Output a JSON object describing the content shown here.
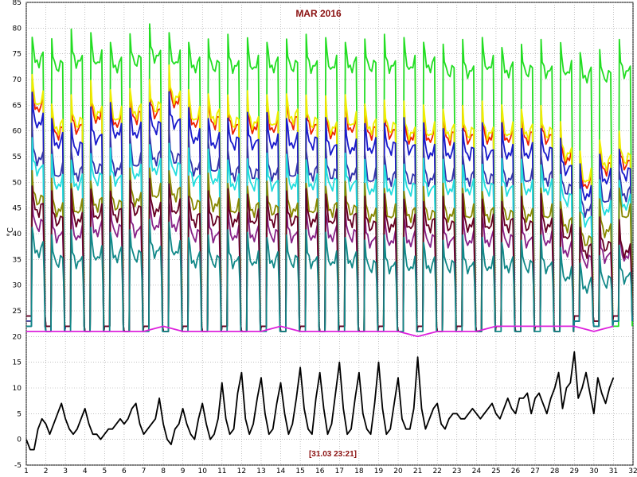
{
  "chart_data": {
    "type": "line",
    "title": "MAR 2016",
    "ylabel": "°C",
    "timestamp": "[31.03 23:21]",
    "xlim": [
      1,
      32
    ],
    "ylim": [
      -5,
      85
    ],
    "x_ticks": [
      1,
      2,
      3,
      4,
      5,
      6,
      7,
      8,
      9,
      10,
      11,
      12,
      13,
      14,
      15,
      16,
      17,
      18,
      19,
      20,
      21,
      22,
      23,
      24,
      25,
      26,
      27,
      28,
      29,
      30,
      31,
      32
    ],
    "y_ticks": [
      -5,
      0,
      5,
      10,
      15,
      20,
      25,
      30,
      35,
      40,
      45,
      50,
      55,
      60,
      65,
      70,
      75,
      80,
      85
    ],
    "grid": true,
    "daily_series": [
      {
        "color": "#22dd22",
        "base": [
          22,
          21,
          22,
          21,
          22,
          21,
          22,
          21,
          22,
          21,
          22,
          21,
          22,
          21,
          22,
          21,
          22,
          21,
          22,
          21,
          22,
          21,
          22,
          21,
          22,
          21,
          22,
          21,
          23,
          22,
          22
        ],
        "peak": [
          79,
          78,
          79,
          79,
          78,
          79,
          80,
          79,
          78,
          78,
          78,
          78,
          78,
          78,
          78,
          78,
          78,
          78,
          78,
          78,
          78,
          77,
          77,
          78,
          77,
          77,
          77,
          77,
          76,
          76,
          77
        ]
      },
      {
        "color": "#ee2200",
        "base": [
          23,
          21,
          22,
          21,
          22,
          21,
          22,
          21,
          22,
          21,
          22,
          21,
          22,
          21,
          22,
          21,
          22,
          21,
          22,
          21,
          22,
          21,
          22,
          21,
          22,
          21,
          22,
          21,
          24,
          23,
          24
        ],
        "peak": [
          70,
          65,
          66,
          68,
          67,
          68,
          69,
          71,
          67,
          67,
          66,
          66,
          66,
          67,
          66,
          65,
          66,
          65,
          65,
          64,
          64,
          64,
          64,
          64,
          64,
          64,
          64,
          60,
          55,
          58,
          59
        ]
      },
      {
        "color": "#eeee00",
        "base": [
          23,
          21,
          22,
          21,
          22,
          21,
          22,
          21,
          22,
          21,
          22,
          21,
          22,
          21,
          22,
          21,
          22,
          21,
          22,
          21,
          22,
          21,
          22,
          21,
          22,
          21,
          22,
          21,
          24,
          23,
          24
        ],
        "peak": [
          71,
          66,
          67,
          69,
          68,
          69,
          70,
          72,
          68,
          68,
          67,
          67,
          67,
          68,
          67,
          66,
          67,
          66,
          66,
          65,
          65,
          65,
          65,
          65,
          65,
          65,
          65,
          61,
          56,
          59,
          60
        ]
      },
      {
        "color": "#1a1acc",
        "base": [
          22,
          21,
          22,
          21,
          22,
          21,
          22,
          21,
          22,
          21,
          22,
          21,
          22,
          21,
          22,
          21,
          22,
          21,
          22,
          21,
          22,
          21,
          22,
          21,
          22,
          21,
          22,
          21,
          23,
          22,
          23
        ],
        "peak": [
          67,
          63,
          62,
          64,
          65,
          65,
          66,
          67,
          64,
          63,
          63,
          63,
          63,
          63,
          63,
          62,
          62,
          62,
          62,
          62,
          61,
          61,
          61,
          61,
          61,
          61,
          61,
          58,
          53,
          56,
          57
        ]
      },
      {
        "color": "#3333aa",
        "base": [
          23,
          21,
          22,
          21,
          22,
          21,
          22,
          21,
          22,
          21,
          22,
          21,
          22,
          21,
          22,
          21,
          22,
          21,
          22,
          21,
          22,
          21,
          22,
          21,
          22,
          21,
          22,
          21,
          23,
          22,
          23
        ],
        "peak": [
          60,
          57,
          57,
          58,
          58,
          59,
          60,
          60,
          58,
          58,
          57,
          57,
          57,
          57,
          57,
          57,
          57,
          56,
          56,
          56,
          56,
          56,
          56,
          56,
          56,
          56,
          56,
          54,
          50,
          52,
          53
        ]
      },
      {
        "color": "#22dddd",
        "base": [
          24,
          22,
          22,
          21,
          22,
          21,
          22,
          21,
          22,
          21,
          22,
          21,
          22,
          21,
          22,
          21,
          22,
          21,
          22,
          21,
          22,
          21,
          22,
          21,
          22,
          21,
          22,
          21,
          24,
          23,
          24
        ],
        "peak": [
          58,
          55,
          55,
          56,
          56,
          57,
          58,
          58,
          56,
          56,
          55,
          55,
          55,
          55,
          55,
          55,
          55,
          54,
          54,
          54,
          54,
          54,
          54,
          54,
          54,
          54,
          54,
          52,
          48,
          50,
          51
        ]
      },
      {
        "color": "#888800",
        "base": [
          24,
          22,
          22,
          21,
          22,
          21,
          22,
          21,
          22,
          21,
          22,
          21,
          22,
          21,
          22,
          21,
          22,
          21,
          22,
          21,
          22,
          21,
          22,
          21,
          22,
          21,
          22,
          21,
          24,
          23,
          24
        ],
        "peak": [
          52,
          50,
          50,
          51,
          51,
          52,
          53,
          53,
          51,
          51,
          50,
          50,
          50,
          50,
          50,
          50,
          50,
          49,
          49,
          49,
          49,
          49,
          49,
          49,
          49,
          49,
          49,
          47,
          44,
          46,
          49
        ]
      },
      {
        "color": "#882288",
        "base": [
          24,
          22,
          22,
          21,
          22,
          21,
          22,
          21,
          22,
          21,
          22,
          21,
          22,
          21,
          22,
          21,
          22,
          21,
          22,
          21,
          22,
          21,
          22,
          21,
          22,
          21,
          22,
          21,
          24,
          23,
          24
        ],
        "peak": [
          47,
          45,
          45,
          46,
          46,
          46,
          47,
          47,
          45,
          45,
          45,
          45,
          45,
          45,
          45,
          45,
          45,
          44,
          44,
          44,
          44,
          44,
          44,
          44,
          44,
          44,
          44,
          42,
          40,
          41,
          41
        ]
      },
      {
        "color": "#660022",
        "base": [
          24,
          22,
          22,
          21,
          22,
          21,
          22,
          21,
          22,
          21,
          22,
          21,
          22,
          21,
          22,
          21,
          22,
          21,
          22,
          21,
          22,
          21,
          22,
          21,
          22,
          21,
          22,
          21,
          24,
          23,
          24
        ],
        "peak": [
          50,
          48,
          48,
          49,
          49,
          50,
          50,
          50,
          48,
          48,
          48,
          48,
          48,
          48,
          48,
          48,
          48,
          47,
          47,
          47,
          47,
          47,
          47,
          47,
          47,
          47,
          47,
          45,
          42,
          43,
          42
        ]
      },
      {
        "color": "#118888",
        "base": [
          22,
          21,
          21,
          21,
          21,
          21,
          21,
          21,
          21,
          21,
          21,
          21,
          21,
          21,
          21,
          21,
          21,
          21,
          21,
          21,
          21,
          21,
          21,
          21,
          21,
          21,
          21,
          21,
          23,
          22,
          23
        ],
        "peak": [
          42,
          40,
          40,
          41,
          41,
          41,
          42,
          42,
          40,
          40,
          40,
          40,
          40,
          40,
          40,
          40,
          40,
          39,
          39,
          39,
          39,
          39,
          39,
          39,
          39,
          39,
          39,
          37,
          35,
          36,
          37
        ]
      }
    ],
    "series": [
      {
        "name": "",
        "color": "#dd22dd",
        "x": [
          1,
          2,
          3,
          4,
          5,
          6,
          7,
          8,
          9,
          10,
          11,
          12,
          13,
          14,
          15,
          16,
          17,
          18,
          19,
          20,
          21,
          22,
          23,
          24,
          25,
          26,
          27,
          28,
          29,
          30,
          31
        ],
        "y": [
          21,
          21,
          21,
          21,
          21,
          21,
          21,
          22,
          21,
          21,
          21,
          21,
          21,
          22,
          21,
          21,
          21,
          21,
          21,
          21,
          20,
          21,
          21,
          21,
          22,
          22,
          22,
          22,
          22,
          21,
          22
        ]
      },
      {
        "name": "",
        "color": "#000000",
        "x": [
          1,
          1.2,
          1.4,
          1.6,
          1.8,
          2,
          2.2,
          2.4,
          2.6,
          2.8,
          3,
          3.2,
          3.4,
          3.6,
          3.8,
          4,
          4.2,
          4.4,
          4.6,
          4.8,
          5,
          5.2,
          5.4,
          5.6,
          5.8,
          6,
          6.2,
          6.4,
          6.6,
          6.8,
          7,
          7.2,
          7.4,
          7.6,
          7.8,
          8,
          8.2,
          8.4,
          8.6,
          8.8,
          9,
          9.2,
          9.4,
          9.6,
          9.8,
          10,
          10.2,
          10.4,
          10.6,
          10.8,
          11,
          11.2,
          11.4,
          11.6,
          11.8,
          12,
          12.2,
          12.4,
          12.6,
          12.8,
          13,
          13.2,
          13.4,
          13.6,
          13.8,
          14,
          14.2,
          14.4,
          14.6,
          14.8,
          15,
          15.2,
          15.4,
          15.6,
          15.8,
          16,
          16.2,
          16.4,
          16.6,
          16.8,
          17,
          17.2,
          17.4,
          17.6,
          17.8,
          18,
          18.2,
          18.4,
          18.6,
          18.8,
          19,
          19.2,
          19.4,
          19.6,
          19.8,
          20,
          20.2,
          20.4,
          20.6,
          20.8,
          21,
          21.2,
          21.4,
          21.6,
          21.8,
          22,
          22.2,
          22.4,
          22.6,
          22.8,
          23,
          23.2,
          23.4,
          23.6,
          23.8,
          24,
          24.2,
          24.4,
          24.6,
          24.8,
          25,
          25.2,
          25.4,
          25.6,
          25.8,
          26,
          26.2,
          26.4,
          26.6,
          26.8,
          27,
          27.2,
          27.4,
          27.6,
          27.8,
          28,
          28.2,
          28.4,
          28.6,
          28.8,
          29,
          29.2,
          29.4,
          29.6,
          29.8,
          30,
          30.2,
          30.4,
          30.6,
          30.8,
          31
        ],
        "y": [
          0,
          -2,
          -2,
          2,
          4,
          3,
          1,
          3,
          5,
          7,
          4,
          2,
          1,
          2,
          4,
          6,
          3,
          1,
          1,
          0,
          1,
          2,
          2,
          3,
          4,
          3,
          4,
          6,
          7,
          3,
          1,
          2,
          3,
          4,
          8,
          3,
          0,
          -1,
          2,
          3,
          6,
          3,
          1,
          0,
          4,
          7,
          3,
          0,
          1,
          4,
          11,
          4,
          1,
          2,
          9,
          13,
          4,
          1,
          3,
          8,
          12,
          5,
          1,
          2,
          7,
          11,
          5,
          1,
          3,
          8,
          14,
          6,
          2,
          1,
          8,
          13,
          6,
          1,
          3,
          9,
          15,
          6,
          1,
          2,
          8,
          13,
          5,
          2,
          1,
          7,
          15,
          6,
          1,
          2,
          7,
          12,
          4,
          2,
          2,
          6,
          16,
          6,
          2,
          4,
          6,
          7,
          3,
          2,
          4,
          5,
          5,
          4,
          4,
          5,
          6,
          5,
          4,
          5,
          6,
          7,
          5,
          4,
          6,
          8,
          6,
          5,
          8,
          8,
          9,
          5,
          8,
          9,
          7,
          5,
          8,
          10,
          13,
          6,
          10,
          11,
          17,
          8,
          10,
          13,
          9,
          5,
          12,
          9,
          7,
          10,
          12
        ]
      }
    ]
  }
}
